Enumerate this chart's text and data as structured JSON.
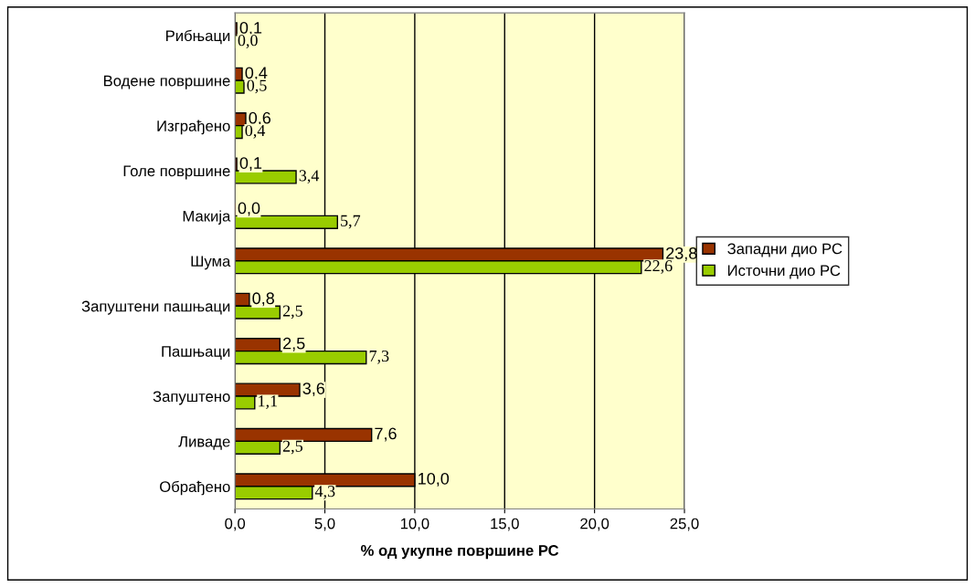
{
  "chart_data": {
    "type": "bar",
    "orientation": "horizontal",
    "xlabel": "% од укупне површине РС",
    "categories": [
      "Рибњаци",
      "Водене површине",
      "Изграђено",
      "Голе површине",
      "Макија",
      "Шума",
      "Запуштени пашњаци",
      "Пашњаци",
      "Запуштено",
      "Ливаде",
      "Обрађено"
    ],
    "series": [
      {
        "name": "Западни дио РС",
        "color": "#993300",
        "values": [
          0.1,
          0.4,
          0.6,
          0.1,
          0.0,
          23.8,
          0.8,
          2.5,
          3.6,
          7.6,
          10.0
        ],
        "value_labels": [
          "0,1",
          "0,4",
          "0,6",
          "0,1",
          "0,0",
          "23,8",
          "0,8",
          "2,5",
          "3,6",
          "7,6",
          "10,0"
        ]
      },
      {
        "name": "Источни дио РС",
        "color": "#99cc00",
        "values": [
          0.0,
          0.5,
          0.4,
          3.4,
          5.7,
          22.6,
          2.5,
          7.3,
          1.1,
          2.5,
          4.3
        ],
        "value_labels": [
          "0,0",
          "0,5",
          "0,4",
          "3,4",
          "5,7",
          "22,6",
          "2,5",
          "7,3",
          "1,1",
          "2,5",
          "4,3"
        ]
      }
    ],
    "xlim": [
      0,
      25
    ],
    "xticks": [
      {
        "value": 0,
        "label": "0,0"
      },
      {
        "value": 5,
        "label": "5,0"
      },
      {
        "value": 10,
        "label": "10,0"
      },
      {
        "value": 15,
        "label": "15,0"
      },
      {
        "value": 20,
        "label": "20,0"
      },
      {
        "value": 25,
        "label": "25,0"
      }
    ],
    "grid": "x",
    "legend": "right"
  }
}
